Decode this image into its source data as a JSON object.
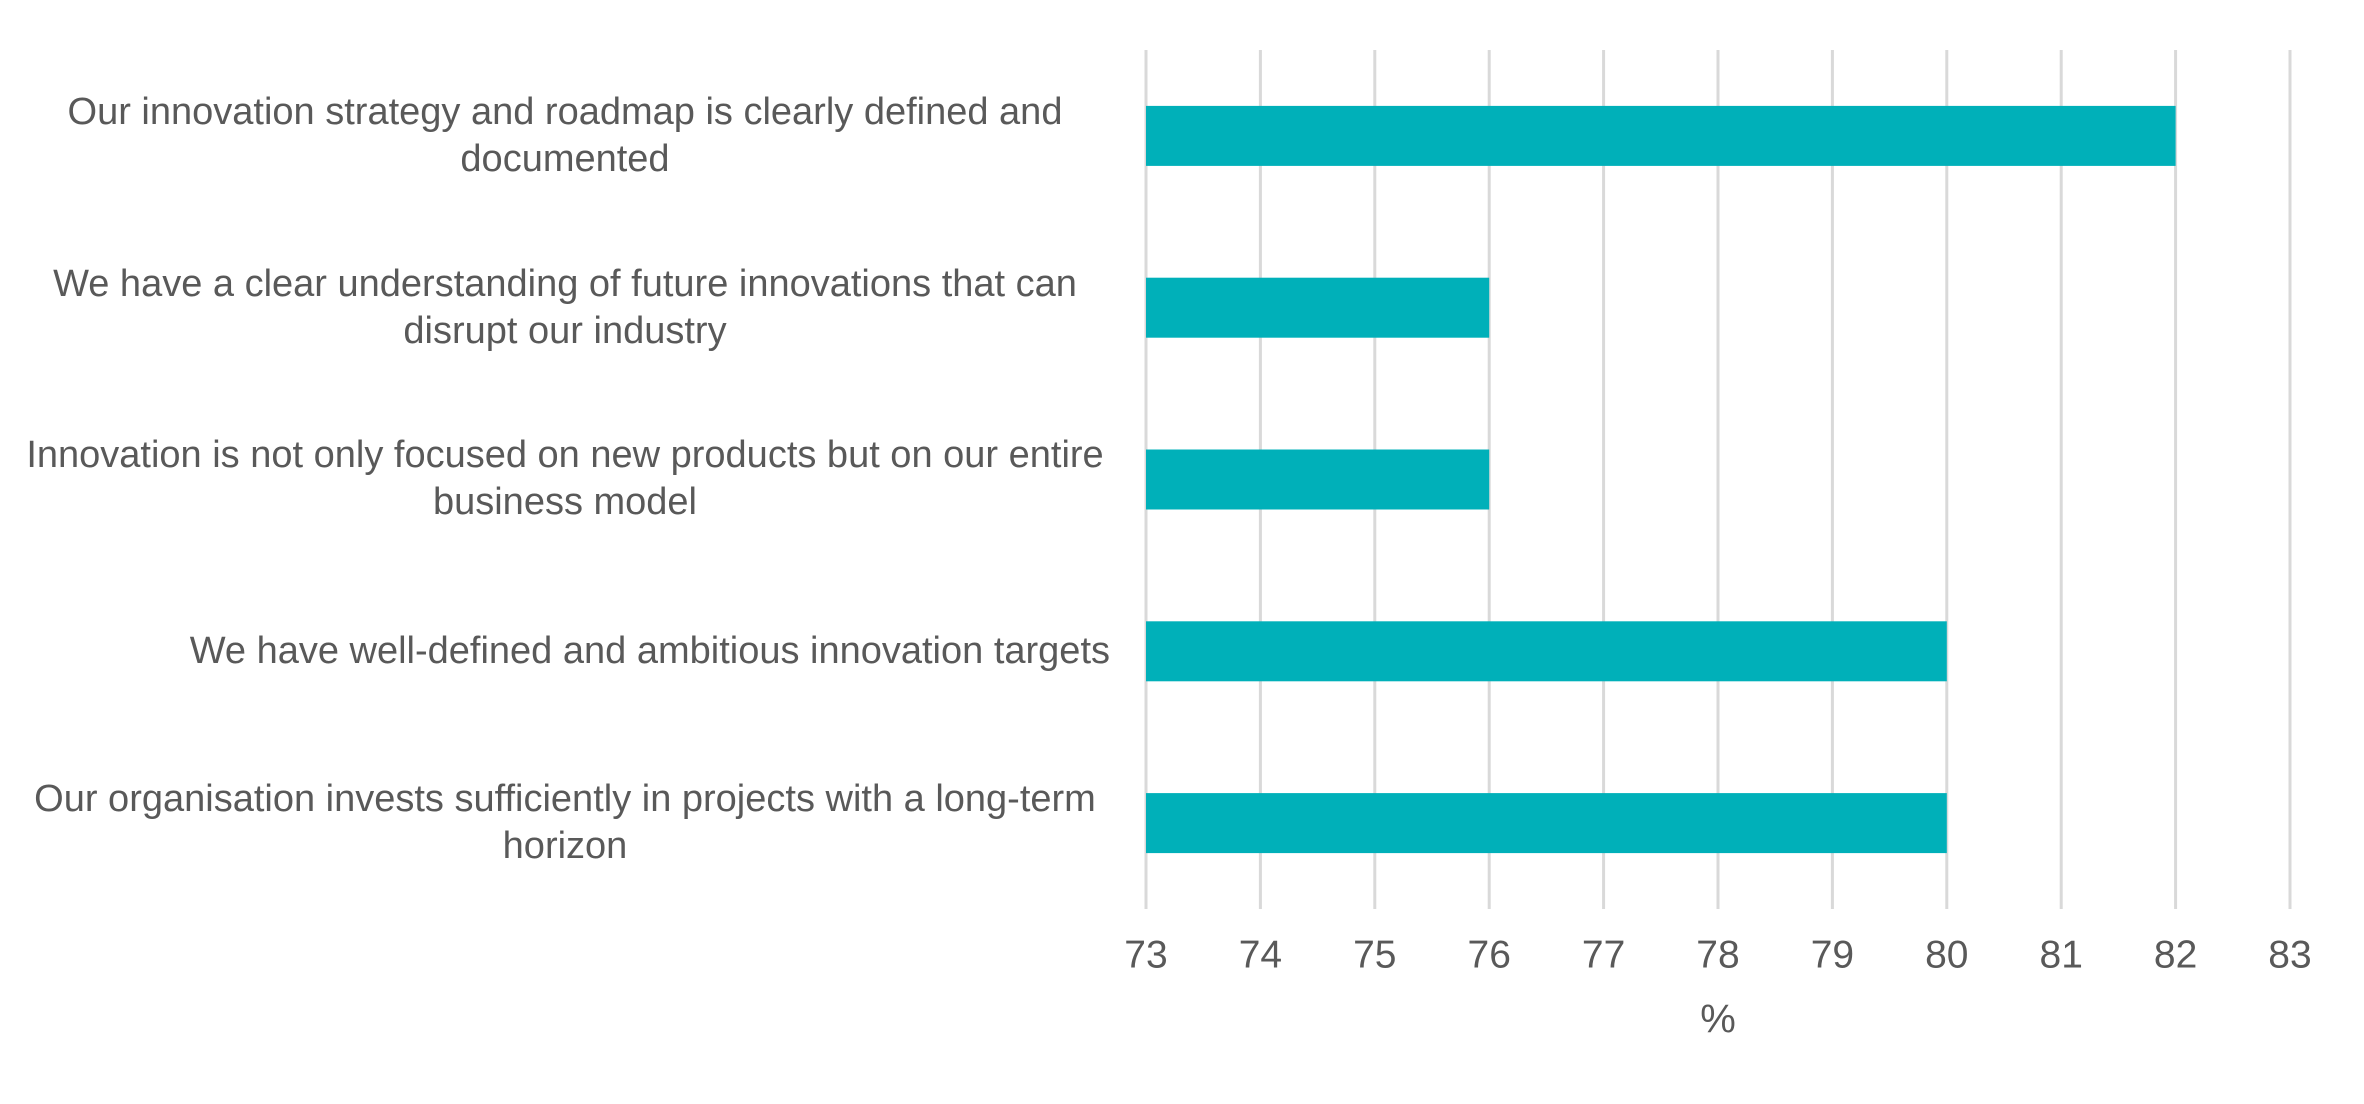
{
  "chart_data": {
    "type": "barh",
    "categories": [
      "Our innovation strategy and roadmap is clearly defined and documented",
      "We have a clear understanding of future innovations that can disrupt our industry",
      "Innovation is not only focused on new products but on our entire business model",
      "We have well-defined and ambitious innovation targets",
      "Our organisation invests sufficiently in projects with a long-term horizon"
    ],
    "values": [
      82,
      76,
      76,
      80,
      80
    ],
    "color": "#00b0b9",
    "xlabel": "%",
    "xlim": [
      73,
      83
    ],
    "xticks": [
      73,
      74,
      75,
      76,
      77,
      78,
      79,
      80,
      81,
      82,
      83
    ],
    "grid": true
  }
}
